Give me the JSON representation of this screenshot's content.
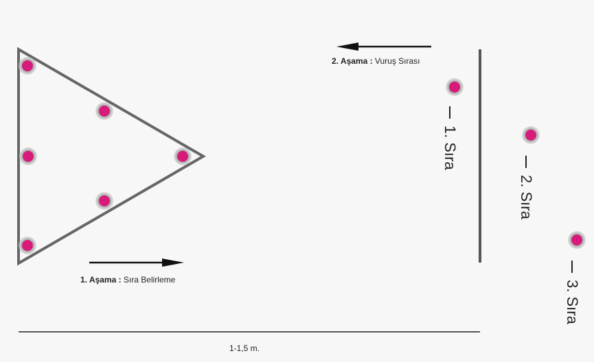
{
  "stage1": {
    "label_bold": "1. Aşama :",
    "label_text": " Sıra Belirleme"
  },
  "stage2": {
    "label_bold": "2. Aşama :",
    "label_text": " Vuruş Sırası"
  },
  "rows": [
    {
      "arrow": "⟶",
      "label": "1. Sıra"
    },
    {
      "arrow": "⟶",
      "label": "2. Sıra"
    },
    {
      "arrow": "⟶",
      "label": "3. Sıra"
    }
  ],
  "distance_label": "1-1,5 m.",
  "colors": {
    "ball": "#d81b7a",
    "ball_halo": "#b0b0b0",
    "line": "#555555",
    "arrow": "#111111",
    "background": "#f7f7f7"
  }
}
